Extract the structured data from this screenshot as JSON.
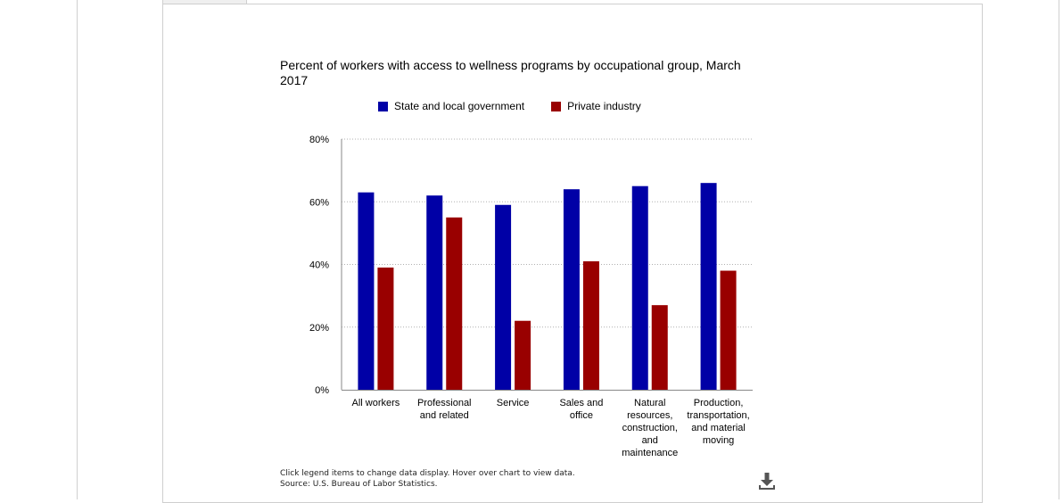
{
  "chart_data": {
    "type": "bar",
    "title": "Percent of workers with access to wellness programs by occupational group, March 2017",
    "categories": [
      "All workers",
      "Professional and related",
      "Service",
      "Sales and office",
      "Natural resources, construction, and maintenance",
      "Production, transportation, and material moving"
    ],
    "category_lines": [
      [
        "All workers"
      ],
      [
        "Professional",
        "and related"
      ],
      [
        "Service"
      ],
      [
        "Sales and",
        "office"
      ],
      [
        "Natural",
        "resources,",
        "construction,",
        "and",
        "maintenance"
      ],
      [
        "Production,",
        "transportation,",
        "and material",
        "moving"
      ]
    ],
    "series": [
      {
        "name": "State and local government",
        "color": "#0000a6",
        "values": [
          63,
          62,
          59,
          64,
          65,
          66
        ]
      },
      {
        "name": "Private industry",
        "color": "#990000",
        "values": [
          39,
          55,
          22,
          41,
          27,
          38
        ]
      }
    ],
    "yticks": [
      "0%",
      "20%",
      "40%",
      "60%",
      "80%"
    ],
    "ylim": [
      0,
      80
    ],
    "grid": true,
    "legend_position": "top"
  },
  "footnote": {
    "line1": "Click legend items to change data display. Hover over chart to view data.",
    "line2": "Source: U.S. Bureau of Labor Statistics."
  },
  "download_icon": "download-icon"
}
